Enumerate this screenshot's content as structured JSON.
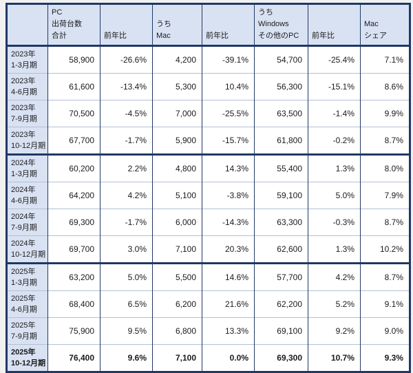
{
  "colors": {
    "page_bg": "#f1f1f2",
    "header_bg": "#d9e2f3",
    "label_bg": "#d9e2f3",
    "cell_bg": "#ffffff",
    "border_dark": "#1f3864",
    "border_light": "#b3bfd3",
    "text": "#1a1a1a"
  },
  "chart_data": {
    "type": "table",
    "columns": [
      {
        "lines": []
      },
      {
        "lines": [
          "PC",
          "出荷台数",
          "合計"
        ]
      },
      {
        "lines": [
          "前年比"
        ]
      },
      {
        "lines": [
          "うち",
          "Mac"
        ]
      },
      {
        "lines": [
          "前年比"
        ]
      },
      {
        "lines": [
          "うち",
          "Windows",
          "その他のPC"
        ]
      },
      {
        "lines": [
          "前年比"
        ]
      },
      {
        "lines": [
          "Mac",
          "シェア"
        ]
      }
    ],
    "groups": [
      {
        "year": "2023",
        "rows": [
          {
            "year": "2023年",
            "quarter": "1-3月期",
            "bold": false,
            "values": [
              "58,900",
              "-26.6%",
              "4,200",
              "-39.1%",
              "54,700",
              "-25.4%",
              "7.1%"
            ]
          },
          {
            "year": "2023年",
            "quarter": "4-6月期",
            "bold": false,
            "values": [
              "61,600",
              "-13.4%",
              "5,300",
              "10.4%",
              "56,300",
              "-15.1%",
              "8.6%"
            ]
          },
          {
            "year": "2023年",
            "quarter": "7-9月期",
            "bold": false,
            "values": [
              "70,500",
              "-4.5%",
              "7,000",
              "-25.5%",
              "63,500",
              "-1.4%",
              "9.9%"
            ]
          },
          {
            "year": "2023年",
            "quarter": "10-12月期",
            "bold": false,
            "values": [
              "67,700",
              "-1.7%",
              "5,900",
              "-15.7%",
              "61,800",
              "-0.2%",
              "8.7%"
            ]
          }
        ]
      },
      {
        "year": "2024",
        "rows": [
          {
            "year": "2024年",
            "quarter": "1-3月期",
            "bold": false,
            "values": [
              "60,200",
              "2.2%",
              "4,800",
              "14.3%",
              "55,400",
              "1.3%",
              "8.0%"
            ]
          },
          {
            "year": "2024年",
            "quarter": "4-6月期",
            "bold": false,
            "values": [
              "64,200",
              "4.2%",
              "5,100",
              "-3.8%",
              "59,100",
              "5.0%",
              "7.9%"
            ]
          },
          {
            "year": "2024年",
            "quarter": "7-9月期",
            "bold": false,
            "values": [
              "69,300",
              "-1.7%",
              "6,000",
              "-14.3%",
              "63,300",
              "-0.3%",
              "8.7%"
            ]
          },
          {
            "year": "2024年",
            "quarter": "10-12月期",
            "bold": false,
            "values": [
              "69,700",
              "3.0%",
              "7,100",
              "20.3%",
              "62,600",
              "1.3%",
              "10.2%"
            ]
          }
        ]
      },
      {
        "year": "2025",
        "rows": [
          {
            "year": "2025年",
            "quarter": "1-3月期",
            "bold": false,
            "values": [
              "63,200",
              "5.0%",
              "5,500",
              "14.6%",
              "57,700",
              "4.2%",
              "8.7%"
            ]
          },
          {
            "year": "2025年",
            "quarter": "4-6月期",
            "bold": false,
            "values": [
              "68,400",
              "6.5%",
              "6,200",
              "21.6%",
              "62,200",
              "5.2%",
              "9.1%"
            ]
          },
          {
            "year": "2025年",
            "quarter": "7-9月期",
            "bold": false,
            "values": [
              "75,900",
              "9.5%",
              "6,800",
              "13.3%",
              "69,100",
              "9.2%",
              "9.0%"
            ]
          },
          {
            "year": "2025年",
            "quarter": "10-12月期",
            "bold": true,
            "values": [
              "76,400",
              "9.6%",
              "7,100",
              "0.0%",
              "69,300",
              "10.7%",
              "9.3%"
            ]
          }
        ]
      }
    ]
  }
}
